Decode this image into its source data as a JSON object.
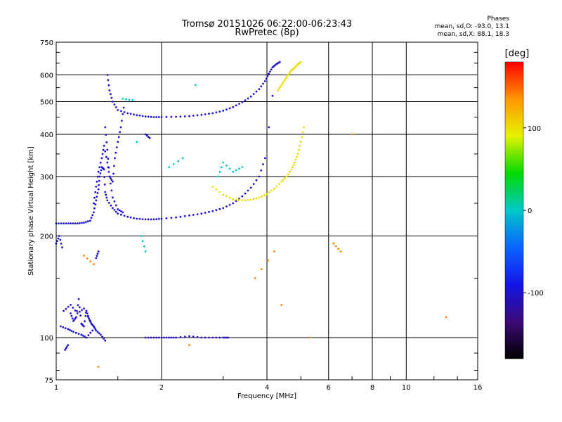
{
  "header": {
    "title": "Tromsø 20151026 06:22:00-06:23:43",
    "subtitle": "RwPretec (8p)"
  },
  "phase_stats": {
    "heading": "Phases",
    "line_o": "mean, sd,O: -93.0, 13.1",
    "line_x": "mean, sd,X:  88.1, 18.3"
  },
  "colorbar": {
    "unit": "[deg]",
    "ticks": [
      "100",
      "0",
      "-100"
    ],
    "tick_values": [
      100,
      0,
      -100
    ],
    "range": [
      -180,
      180
    ],
    "colors": [
      "#000000",
      "#3c0a78",
      "#1414e6",
      "#0a64ff",
      "#00c8c8",
      "#00dc00",
      "#e6f000",
      "#ff9600",
      "#ff0000"
    ]
  },
  "chart_data": {
    "type": "scatter",
    "title": "Tromsø 20151026 06:22:00-06:23:43",
    "subtitle": "RwPretec (8p)",
    "xlabel": "Frequency [MHz]",
    "ylabel": "Stationary phase Virtual Height [km]",
    "x_scale": "log",
    "y_scale": "log",
    "xlim": [
      1,
      16
    ],
    "ylim": [
      75,
      750
    ],
    "x_ticks": [
      1,
      2,
      4,
      6,
      8,
      10,
      16
    ],
    "x_tick_labels": [
      "1",
      "2",
      "4",
      "6",
      "8",
      "10",
      "16"
    ],
    "y_ticks": [
      75,
      100,
      200,
      300,
      400,
      500,
      600,
      750
    ],
    "y_tick_labels": [
      "75",
      "100",
      "200",
      "300",
      "400",
      "500",
      "600",
      "750"
    ],
    "grid": true,
    "color_variable": "Phase [deg]",
    "series": [
      {
        "phase_deg": -100,
        "x": [
          1.0,
          1.05,
          1.1,
          1.15,
          1.2,
          1.25,
          1.28,
          1.3,
          1.32,
          1.33,
          1.35,
          1.37,
          1.38,
          1.4,
          1.45,
          1.5,
          1.6,
          1.7,
          1.8,
          1.9,
          2.0,
          2.2,
          2.4,
          2.6,
          2.8,
          3.0,
          3.2,
          3.4,
          3.6,
          3.8,
          3.95,
          4.05,
          4.15
        ],
        "y": [
          218,
          218,
          218,
          218,
          219,
          222,
          235,
          255,
          275,
          300,
          320,
          315,
          270,
          255,
          242,
          233,
          228,
          225,
          224,
          224,
          225,
          227,
          230,
          233,
          237,
          242,
          250,
          262,
          278,
          300,
          340,
          420,
          520
        ]
      },
      {
        "phase_deg": -100,
        "x": [
          1.28,
          1.3,
          1.32,
          1.35,
          1.37,
          1.4,
          1.42,
          1.45,
          1.47,
          1.5,
          1.53,
          1.56
        ],
        "y": [
          250,
          280,
          310,
          340,
          370,
          330,
          300,
          290,
          340,
          380,
          420,
          480
        ]
      },
      {
        "phase_deg": -100,
        "x": [
          1.4,
          1.42,
          1.45,
          1.5,
          1.6,
          1.7,
          1.8,
          1.9,
          2.0,
          2.2,
          2.4,
          2.6,
          2.8,
          3.0,
          3.2,
          3.4,
          3.6,
          3.8,
          3.95,
          4.05,
          4.15,
          4.25,
          4.35
        ],
        "y": [
          600,
          540,
          500,
          472,
          462,
          456,
          452,
          450,
          450,
          451,
          453,
          457,
          462,
          470,
          482,
          498,
          518,
          545,
          575,
          605,
          632,
          645,
          655
        ]
      },
      {
        "phase_deg": -100,
        "x": [
          1.38,
          1.4,
          1.42,
          1.45,
          1.5,
          1.55,
          1.8,
          1.85,
          1.05,
          1.1,
          1.15,
          1.2,
          1.25,
          1.03,
          1.08,
          1.12,
          1.18,
          1.22,
          1.27,
          1.3,
          1.32,
          1.8,
          1.9,
          2.0,
          2.1,
          2.2,
          2.4,
          2.6,
          2.8,
          3.0,
          3.1
        ],
        "y": [
          420,
          360,
          300,
          260,
          240,
          235,
          400,
          390,
          120,
          125,
          118,
          122,
          112,
          108,
          106,
          104,
          102,
          100,
          105,
          172,
          180,
          100,
          100,
          100,
          100,
          100,
          101,
          100,
          100,
          100,
          100
        ]
      },
      {
        "phase_deg": -100,
        "x": [
          1.0,
          1.02,
          1.04,
          1.06,
          1.08,
          1.1,
          1.12,
          1.14,
          1.16,
          1.18,
          1.2,
          1.22,
          1.24,
          1.26,
          1.28,
          1.3,
          1.34,
          1.38
        ],
        "y": [
          190,
          200,
          185,
          92,
          95,
          118,
          112,
          115,
          130,
          110,
          108,
          120,
          114,
          110,
          108,
          105,
          102,
          98
        ]
      },
      {
        "phase_deg": 100,
        "x": [
          2.8,
          3.0,
          3.2,
          3.4,
          3.6,
          3.8,
          4.0,
          4.2,
          4.4,
          4.55,
          4.7,
          4.8,
          4.9,
          5.0,
          5.1
        ],
        "y": [
          280,
          265,
          257,
          255,
          256,
          260,
          266,
          276,
          290,
          300,
          315,
          330,
          350,
          380,
          420
        ]
      },
      {
        "phase_deg": 100,
        "x": [
          4.3,
          4.4,
          4.5,
          4.6,
          4.7,
          4.8,
          4.9,
          5.0
        ],
        "y": [
          540,
          560,
          580,
          600,
          620,
          630,
          645,
          655
        ]
      },
      {
        "phase_deg": 0,
        "x": [
          1.55,
          1.65,
          1.7,
          1.75,
          1.8,
          2.1,
          2.3,
          2.5,
          2.9,
          3.0,
          3.2,
          3.4
        ],
        "y": [
          510,
          505,
          380,
          200,
          180,
          320,
          340,
          560,
          300,
          330,
          310,
          320
        ]
      },
      {
        "phase_deg": 140,
        "x": [
          1.2,
          1.28,
          1.32,
          2.4,
          3.7,
          4.2,
          4.4,
          5.3,
          6.2,
          6.5,
          7.0,
          13.0
        ],
        "y": [
          175,
          165,
          82,
          95,
          150,
          180,
          125,
          100,
          190,
          180,
          400,
          115
        ]
      }
    ]
  }
}
